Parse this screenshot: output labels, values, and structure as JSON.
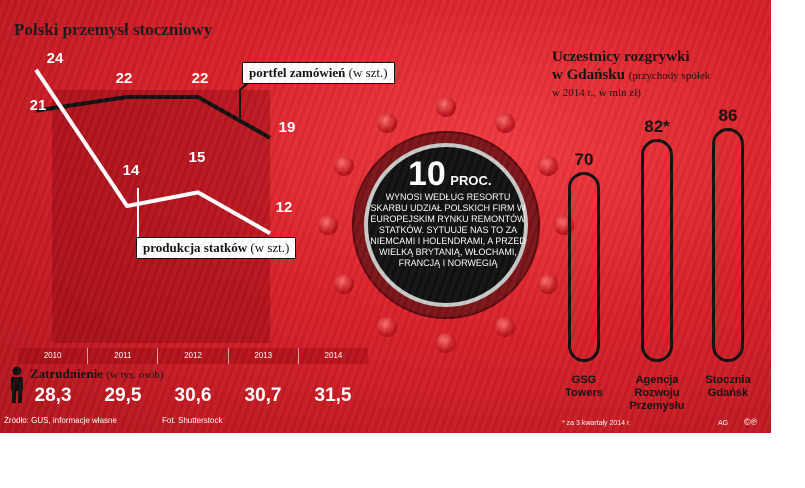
{
  "title": "Polski przemysł stoczniowy",
  "callouts": {
    "orders_label": "portfel zamówień",
    "orders_unit": "(w szt.)",
    "production_label": "produkcja statków",
    "production_unit": "(w szt.)"
  },
  "employment": {
    "label": "Zatrudnienie",
    "unit": "(w tys. osób)"
  },
  "center": {
    "value": "10",
    "unit": "PROC.",
    "text": "WYNOSI WEDŁUG RESORTU SKARBU UDZIAŁ POLSKICH FIRM W EUROPEJSKIM RYNKU REMONTÓW STATKÓW. SYTUUJE NAS TO ZA NIEMCAMI I HOLENDRAMI, A PRZED WIELKĄ BRYTANIĄ, WŁOCHAMI, FRANCJĄ I NORWEGIĄ"
  },
  "right": {
    "title_line1": "Uczestnicy rozgrywki",
    "title_line2": "w Gdańsku",
    "title_paren": "(przychody spółek",
    "subtitle": "w 2014 r., w mln zł)",
    "footnote": "* za 3 kwartały 2014 r.",
    "credit": "AG"
  },
  "source": "Źródło: GUS, informacje własne",
  "photo": "Fot. Shutterstock",
  "colors": {
    "background": "#d8202a",
    "line": "#111111",
    "accent_white": "#ffffff"
  },
  "chart_data": [
    {
      "type": "line",
      "title": "Polski przemysł stoczniowy",
      "x": [
        "2010",
        "2011",
        "2012",
        "2013"
      ],
      "series": [
        {
          "name": "portfel zamówień (w szt.)",
          "values": [
            21,
            22,
            22,
            19
          ]
        },
        {
          "name": "produkcja statków (w szt.)",
          "values": [
            24,
            14,
            15,
            12
          ]
        }
      ],
      "labels": {
        "orders": [
          "21",
          "22",
          "22",
          "19"
        ],
        "production": [
          "24",
          "14",
          "15",
          "12"
        ]
      },
      "ylim": [
        10,
        25
      ],
      "grid": false
    },
    {
      "type": "table",
      "title": "Zatrudnienie (w tys. osób)",
      "columns": [
        "2010",
        "2011",
        "2012",
        "2013",
        "2014"
      ],
      "values": [
        28.3,
        29.5,
        30.6,
        30.7,
        31.5
      ],
      "labels": [
        "28,3",
        "29,5",
        "30,6",
        "30,7",
        "31,5"
      ]
    },
    {
      "type": "bar",
      "title": "Uczestnicy rozgrywki w Gdańsku (przychody spółek w 2014 r., w mln zł)",
      "categories": [
        "GSG Towers",
        "Agencja Rozwoju Przemysłu",
        "Stocznia Gdańsk"
      ],
      "name_lines": [
        [
          "GSG",
          "Towers"
        ],
        [
          "Agencja",
          "Rozwoju",
          "Przemysłu"
        ],
        [
          "Stocznia",
          "Gdańsk"
        ]
      ],
      "values": [
        70,
        82,
        86
      ],
      "labels": [
        "70",
        "82*",
        "86"
      ],
      "ylim": [
        0,
        100
      ]
    }
  ]
}
